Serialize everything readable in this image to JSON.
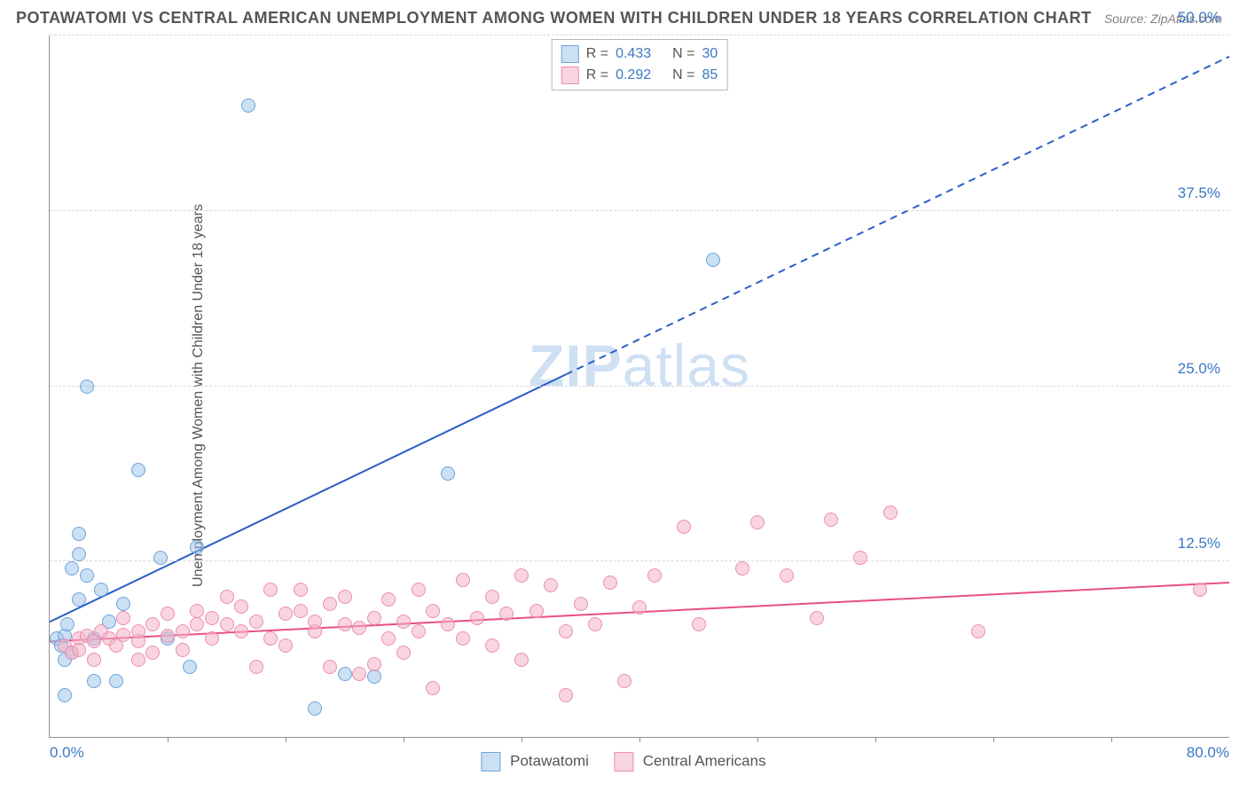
{
  "title": "POTAWATOMI VS CENTRAL AMERICAN UNEMPLOYMENT AMONG WOMEN WITH CHILDREN UNDER 18 YEARS CORRELATION CHART",
  "source": "Source: ZipAtlas.com",
  "ylabel": "Unemployment Among Women with Children Under 18 years",
  "watermark_a": "ZIP",
  "watermark_b": "atlas",
  "chart": {
    "type": "scatter",
    "xlim": [
      0,
      80
    ],
    "ylim": [
      0,
      50
    ],
    "x_start_label": "0.0%",
    "x_end_label": "80.0%",
    "y_ticks": [
      12.5,
      25.0,
      37.5,
      50.0
    ],
    "y_tick_labels": [
      "12.5%",
      "25.0%",
      "37.5%",
      "50.0%"
    ],
    "x_minor_ticks": [
      8,
      16,
      24,
      32,
      40,
      48,
      56,
      64,
      72
    ],
    "grid_color": "#d9d9d9",
    "background": "#ffffff",
    "axis_color": "#909090",
    "tick_label_color": "#3b78c4",
    "marker_radius": 8,
    "marker_border_width": 1.5,
    "series": [
      {
        "id": "potawatomi",
        "label": "Potawatomi",
        "fill": "rgba(160,198,234,0.55)",
        "stroke": "#6ea3db",
        "R": "0.433",
        "N": "30",
        "trend": {
          "color": "#2a5fc7",
          "width": 2,
          "x1": 0,
          "y1": 8.2,
          "x2": 80,
          "y2": 48.5,
          "solid_until_x": 35
        },
        "points": [
          [
            0.5,
            7.0
          ],
          [
            0.8,
            6.5
          ],
          [
            1.0,
            5.5
          ],
          [
            1.0,
            7.2
          ],
          [
            1.2,
            8.0
          ],
          [
            1.5,
            6.0
          ],
          [
            1.5,
            12.0
          ],
          [
            2.0,
            9.8
          ],
          [
            2.0,
            13.0
          ],
          [
            2.0,
            14.5
          ],
          [
            2.5,
            11.5
          ],
          [
            2.5,
            25.0
          ],
          [
            3.0,
            7.0
          ],
          [
            3.5,
            10.5
          ],
          [
            4.0,
            8.2
          ],
          [
            4.5,
            4.0
          ],
          [
            5.0,
            9.5
          ],
          [
            6.0,
            19.0
          ],
          [
            7.5,
            12.8
          ],
          [
            8.0,
            7.0
          ],
          [
            9.5,
            5.0
          ],
          [
            10.0,
            13.5
          ],
          [
            13.5,
            45.0
          ],
          [
            18.0,
            2.0
          ],
          [
            20.0,
            4.5
          ],
          [
            22.0,
            4.3
          ],
          [
            27.0,
            18.8
          ],
          [
            3.0,
            4.0
          ],
          [
            1.0,
            3.0
          ],
          [
            45.0,
            34.0
          ]
        ]
      },
      {
        "id": "central",
        "label": "Central Americans",
        "fill": "rgba(244,178,198,0.55)",
        "stroke": "#ea8fb0",
        "R": "0.292",
        "N": "85",
        "trend": {
          "color": "#e94f82",
          "width": 2,
          "x1": 0,
          "y1": 6.8,
          "x2": 80,
          "y2": 11.0,
          "solid_until_x": 80
        },
        "points": [
          [
            1,
            6.5
          ],
          [
            1.5,
            6.0
          ],
          [
            2,
            7.0
          ],
          [
            2,
            6.2
          ],
          [
            2.5,
            7.2
          ],
          [
            3,
            6.8
          ],
          [
            3,
            5.5
          ],
          [
            3.5,
            7.5
          ],
          [
            4,
            7.0
          ],
          [
            4.5,
            6.5
          ],
          [
            5,
            7.3
          ],
          [
            5,
            8.5
          ],
          [
            6,
            6.8
          ],
          [
            6,
            7.5
          ],
          [
            7,
            8.0
          ],
          [
            7,
            6.0
          ],
          [
            8,
            7.2
          ],
          [
            8,
            8.8
          ],
          [
            9,
            7.5
          ],
          [
            9,
            6.2
          ],
          [
            10,
            8.0
          ],
          [
            10,
            9.0
          ],
          [
            11,
            7.0
          ],
          [
            11,
            8.5
          ],
          [
            12,
            8.0
          ],
          [
            12,
            10.0
          ],
          [
            13,
            7.5
          ],
          [
            13,
            9.3
          ],
          [
            14,
            8.2
          ],
          [
            15,
            7.0
          ],
          [
            15,
            10.5
          ],
          [
            16,
            8.8
          ],
          [
            16,
            6.5
          ],
          [
            17,
            9.0
          ],
          [
            17,
            10.5
          ],
          [
            18,
            7.5
          ],
          [
            18,
            8.2
          ],
          [
            19,
            5.0
          ],
          [
            19,
            9.5
          ],
          [
            20,
            8.0
          ],
          [
            20,
            10.0
          ],
          [
            21,
            4.5
          ],
          [
            21,
            7.8
          ],
          [
            22,
            5.2
          ],
          [
            22,
            8.5
          ],
          [
            23,
            7.0
          ],
          [
            23,
            9.8
          ],
          [
            24,
            6.0
          ],
          [
            24,
            8.2
          ],
          [
            25,
            10.5
          ],
          [
            25,
            7.5
          ],
          [
            26,
            9.0
          ],
          [
            26,
            3.5
          ],
          [
            27,
            8.0
          ],
          [
            28,
            11.2
          ],
          [
            28,
            7.0
          ],
          [
            29,
            8.5
          ],
          [
            30,
            10.0
          ],
          [
            30,
            6.5
          ],
          [
            31,
            8.8
          ],
          [
            32,
            11.5
          ],
          [
            32,
            5.5
          ],
          [
            33,
            9.0
          ],
          [
            34,
            10.8
          ],
          [
            35,
            7.5
          ],
          [
            35,
            3.0
          ],
          [
            36,
            9.5
          ],
          [
            37,
            8.0
          ],
          [
            38,
            11.0
          ],
          [
            39,
            4.0
          ],
          [
            40,
            9.2
          ],
          [
            41,
            11.5
          ],
          [
            43,
            15.0
          ],
          [
            44,
            8.0
          ],
          [
            47,
            12.0
          ],
          [
            48,
            15.3
          ],
          [
            50,
            11.5
          ],
          [
            52,
            8.5
          ],
          [
            53,
            15.5
          ],
          [
            55,
            12.8
          ],
          [
            57,
            16.0
          ],
          [
            63,
            7.5
          ],
          [
            78,
            10.5
          ],
          [
            6,
            5.5
          ],
          [
            14,
            5.0
          ]
        ]
      }
    ]
  },
  "legend_top_labels": {
    "R": "R =",
    "N": "N ="
  }
}
